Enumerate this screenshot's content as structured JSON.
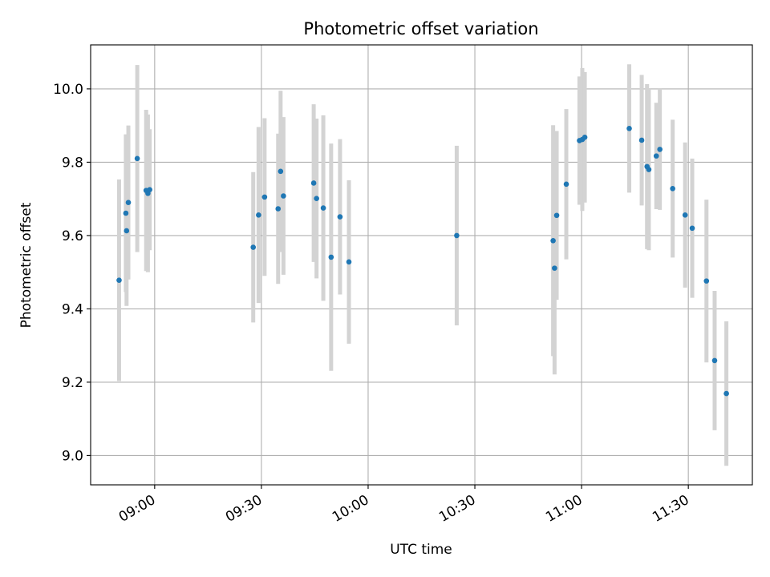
{
  "chart_data": {
    "type": "scatter",
    "title": "Photometric offset variation",
    "xlabel": "UTC time",
    "ylabel": "Photometric offset",
    "grid": true,
    "xlim": [
      "08:42",
      "11:48"
    ],
    "ylim": [
      8.92,
      10.12
    ],
    "x_ticks": [
      "09:00",
      "09:30",
      "10:00",
      "10:30",
      "11:00",
      "11:30"
    ],
    "y_ticks": [
      "9.0",
      "9.2",
      "9.4",
      "9.6",
      "9.8",
      "10.0"
    ],
    "colors": {
      "points": "#1f77b4",
      "error_bars": "#d3d3d3",
      "grid": "#b0b0b0"
    },
    "series": [
      {
        "marker": "point",
        "points": [
          {
            "x": "08:50:00",
            "y": 9.478,
            "err": 0.275
          },
          {
            "x": "08:51:54",
            "y": 9.661,
            "err": 0.215
          },
          {
            "x": "08:52:06",
            "y": 9.613,
            "err": 0.205
          },
          {
            "x": "08:52:36",
            "y": 9.69,
            "err": 0.21
          },
          {
            "x": "08:55:06",
            "y": 9.81,
            "err": 0.255
          },
          {
            "x": "08:57:36",
            "y": 9.723,
            "err": 0.22
          },
          {
            "x": "08:58:06",
            "y": 9.715,
            "err": 0.215
          },
          {
            "x": "08:58:36",
            "y": 9.725,
            "err": 0.165
          },
          {
            "x": "09:27:42",
            "y": 9.568,
            "err": 0.205
          },
          {
            "x": "09:29:12",
            "y": 9.656,
            "err": 0.24
          },
          {
            "x": "09:30:54",
            "y": 9.705,
            "err": 0.215
          },
          {
            "x": "09:34:42",
            "y": 9.673,
            "err": 0.205
          },
          {
            "x": "09:35:24",
            "y": 9.775,
            "err": 0.22
          },
          {
            "x": "09:36:12",
            "y": 9.708,
            "err": 0.215
          },
          {
            "x": "09:44:42",
            "y": 9.743,
            "err": 0.215
          },
          {
            "x": "09:45:30",
            "y": 9.701,
            "err": 0.218
          },
          {
            "x": "09:47:24",
            "y": 9.675,
            "err": 0.253
          },
          {
            "x": "09:49:36",
            "y": 9.541,
            "err": 0.31
          },
          {
            "x": "09:52:06",
            "y": 9.651,
            "err": 0.212
          },
          {
            "x": "09:54:36",
            "y": 9.528,
            "err": 0.223
          },
          {
            "x": "10:24:54",
            "y": 9.6,
            "err": 0.245
          },
          {
            "x": "10:52:00",
            "y": 9.586,
            "err": 0.315
          },
          {
            "x": "10:52:24",
            "y": 9.511,
            "err": 0.29
          },
          {
            "x": "10:53:00",
            "y": 9.655,
            "err": 0.23
          },
          {
            "x": "10:55:42",
            "y": 9.74,
            "err": 0.205
          },
          {
            "x": "10:59:24",
            "y": 9.859,
            "err": 0.175
          },
          {
            "x": "11:00:12",
            "y": 9.862,
            "err": 0.195
          },
          {
            "x": "11:00:54",
            "y": 9.868,
            "err": 0.178
          },
          {
            "x": "11:13:24",
            "y": 9.892,
            "err": 0.175
          },
          {
            "x": "11:16:54",
            "y": 9.86,
            "err": 0.178
          },
          {
            "x": "11:18:24",
            "y": 9.788,
            "err": 0.225
          },
          {
            "x": "11:18:54",
            "y": 9.78,
            "err": 0.22
          },
          {
            "x": "11:21:00",
            "y": 9.817,
            "err": 0.145
          },
          {
            "x": "11:22:00",
            "y": 9.835,
            "err": 0.165
          },
          {
            "x": "11:25:36",
            "y": 9.728,
            "err": 0.188
          },
          {
            "x": "11:29:06",
            "y": 9.656,
            "err": 0.198
          },
          {
            "x": "11:31:06",
            "y": 9.62,
            "err": 0.19
          },
          {
            "x": "11:35:06",
            "y": 9.476,
            "err": 0.222
          },
          {
            "x": "11:37:24",
            "y": 9.259,
            "err": 0.19
          },
          {
            "x": "11:40:42",
            "y": 9.169,
            "err": 0.197
          }
        ]
      }
    ]
  }
}
